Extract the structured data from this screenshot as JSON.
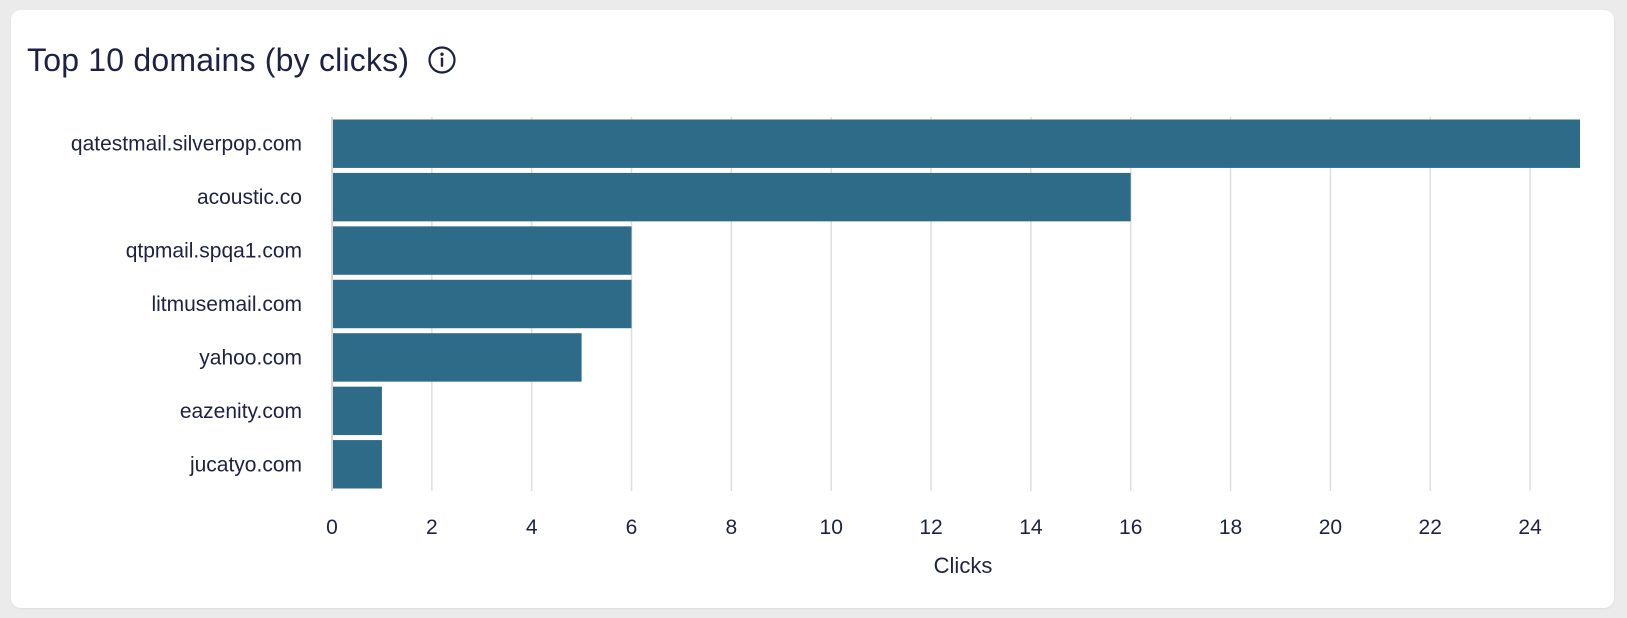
{
  "title": "Top 10 domains (by clicks)",
  "info_icon": "info-icon",
  "colors": {
    "bar": "#2e6b89",
    "grid": "#dedede",
    "text": "#1d2144",
    "axis": "#c8c8c8"
  },
  "chart_data": {
    "type": "bar",
    "orientation": "horizontal",
    "categories": [
      "qatestmail.silverpop.com",
      "acoustic.co",
      "qtpmail.spqa1.com",
      "litmusemail.com",
      "yahoo.com",
      "eazenity.com",
      "jucatyo.com"
    ],
    "values": [
      25,
      16,
      6,
      6,
      5,
      1,
      1
    ],
    "title": "Top 10 domains (by clicks)",
    "xlabel": "Clicks",
    "ylabel": "",
    "xlim": [
      0,
      25
    ],
    "xticks": [
      0,
      2,
      4,
      6,
      8,
      10,
      12,
      14,
      16,
      18,
      20,
      22,
      24
    ],
    "grid": "vertical",
    "legend": "none"
  }
}
